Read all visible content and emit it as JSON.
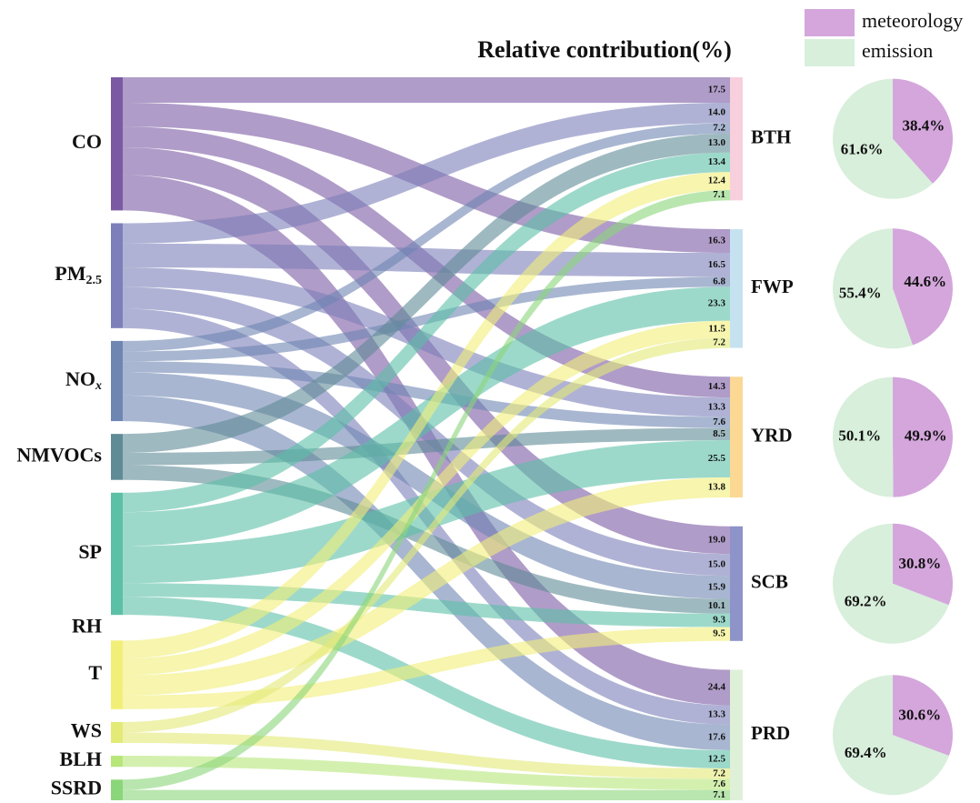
{
  "chart_data": {
    "type": "sankey",
    "title": "Relative contribution(%)",
    "sources": [
      {
        "label": "CO",
        "color": "#7b5aa3"
      },
      {
        "label": "PM",
        "subscript": "2.5",
        "color": "#7c7fb9"
      },
      {
        "label": "NO",
        "subscript": "x",
        "subscript_italic": true,
        "color": "#6e86b2"
      },
      {
        "label": "NMVOCs",
        "color": "#5f8b96"
      },
      {
        "label": "SP",
        "color": "#5cc0a6"
      },
      {
        "label": "RH",
        "color": "#a6dcc0"
      },
      {
        "label": "T",
        "color": "#f2ef78"
      },
      {
        "label": "WS",
        "color": "#e3ea76"
      },
      {
        "label": "BLH",
        "color": "#b7e679"
      },
      {
        "label": "SSRD",
        "color": "#8bd67a"
      }
    ],
    "regions": [
      {
        "name": "BTH",
        "color": "#f8cfdc",
        "values": [
          17.5,
          14.0,
          7.2,
          13.0,
          13.4,
          null,
          12.4,
          null,
          null,
          7.1
        ],
        "value_labels": [
          "17.5",
          "14.0",
          "7.2",
          "13.0",
          "13.4",
          null,
          "12.4",
          null,
          null,
          "7.1"
        ],
        "pie": {
          "values": [
            38.4,
            61.6
          ],
          "value_labels": [
            "38.4%",
            "61.6%"
          ]
        }
      },
      {
        "name": "FWP",
        "color": "#c6e2f1",
        "values": [
          16.3,
          16.5,
          6.8,
          null,
          23.3,
          null,
          11.5,
          7.2,
          null,
          null
        ],
        "value_labels": [
          "16.3",
          "16.5",
          "6.8",
          null,
          "23.3",
          null,
          "11.5",
          "7.2",
          null,
          null
        ],
        "pie": {
          "values": [
            44.6,
            55.4
          ],
          "value_labels": [
            "44.6%",
            "55.4%"
          ]
        }
      },
      {
        "name": "YRD",
        "color": "#fbd894",
        "values": [
          14.3,
          13.3,
          7.6,
          8.5,
          25.5,
          null,
          13.8,
          null,
          null,
          null
        ],
        "value_labels": [
          "14.3",
          "13.3",
          "7.6",
          "8.5",
          "25.5",
          null,
          "13.8",
          null,
          null,
          null
        ],
        "pie": {
          "values": [
            49.9,
            50.1
          ],
          "value_labels": [
            "49.9%",
            "50.1%"
          ]
        }
      },
      {
        "name": "SCB",
        "color": "#8e93c9",
        "values": [
          19.0,
          15.0,
          15.9,
          10.1,
          9.3,
          null,
          9.5,
          null,
          null,
          null
        ],
        "value_labels": [
          "19.0",
          "15.0",
          "15.9",
          "10.1",
          "9.3",
          null,
          "9.5",
          null,
          null,
          null
        ],
        "pie": {
          "values": [
            30.8,
            69.2
          ],
          "value_labels": [
            "30.8%",
            "69.2%"
          ]
        }
      },
      {
        "name": "PRD",
        "color": "#dff0d8",
        "values": [
          24.4,
          13.3,
          17.6,
          null,
          12.5,
          null,
          null,
          7.2,
          7.6,
          7.1
        ],
        "value_labels": [
          "24.4",
          "13.3",
          "17.6",
          null,
          "12.5",
          null,
          null,
          "7.2",
          "7.6",
          "7.1"
        ],
        "pie": {
          "values": [
            30.6,
            69.4
          ],
          "value_labels": [
            "30.6%",
            "69.4%"
          ]
        }
      }
    ],
    "pie_series": [
      {
        "name": "meteorology",
        "color": "#d4a6dc"
      },
      {
        "name": "emission",
        "color": "#d8efdb"
      }
    ]
  }
}
